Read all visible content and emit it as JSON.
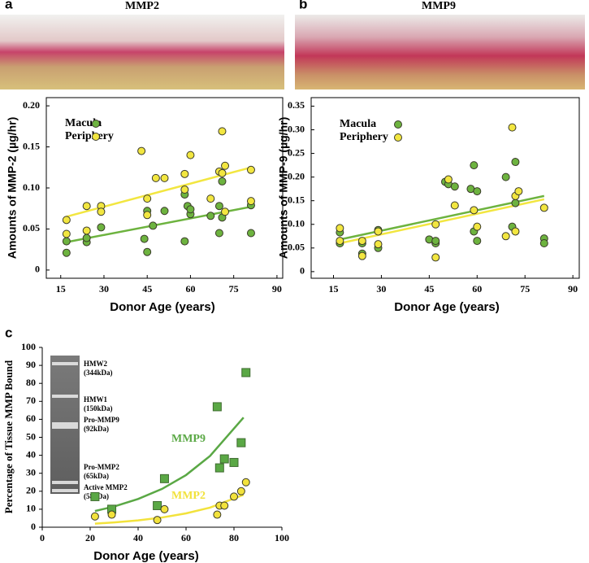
{
  "chart_data": [
    {
      "type": "scatter",
      "panel": "a",
      "title": "MMP2",
      "frame": "box",
      "legend": "top-left",
      "x_label": "Donor Age (years)",
      "y_label": "Amounts of MMP-2  (µg/hr)",
      "xlim": [
        10,
        92
      ],
      "xticks": [
        15,
        30,
        45,
        60,
        75,
        90
      ],
      "ylim": [
        -0.01,
        0.21
      ],
      "yticks": [
        0,
        0.05,
        {
          "value": 0.1,
          "label": "0.10"
        },
        0.15,
        {
          "value": 0.2,
          "label": "0.20"
        }
      ],
      "series": [
        {
          "name": "Macula",
          "color": "#6db33f",
          "marker": "circle",
          "x": [
            17,
            17,
            24,
            24,
            29,
            44,
            45,
            45,
            47,
            51,
            58,
            58,
            59,
            60,
            60,
            67,
            70,
            70,
            71,
            71,
            81,
            81
          ],
          "values": [
            0.021,
            0.035,
            0.034,
            0.039,
            0.052,
            0.038,
            0.072,
            0.022,
            0.054,
            0.072,
            0.035,
            0.092,
            0.078,
            0.068,
            0.074,
            0.066,
            0.045,
            0.078,
            0.064,
            0.108,
            0.045,
            0.079
          ],
          "fit_x": [
            17,
            81
          ],
          "fit_values": [
            0.034,
            0.077
          ]
        },
        {
          "name": "Periphery",
          "color": "#f2e640",
          "marker": "circle",
          "x": [
            17,
            17,
            24,
            24,
            29,
            29,
            43,
            45,
            45,
            48,
            51,
            58,
            58,
            60,
            67,
            70,
            71,
            72,
            71,
            72,
            81,
            81
          ],
          "values": [
            0.061,
            0.044,
            0.078,
            0.048,
            0.078,
            0.071,
            0.145,
            0.087,
            0.067,
            0.112,
            0.112,
            0.098,
            0.117,
            0.14,
            0.087,
            0.12,
            0.118,
            0.127,
            0.169,
            0.071,
            0.122,
            0.084
          ],
          "fit_x": [
            17,
            81
          ],
          "fit_values": [
            0.065,
            0.125
          ]
        }
      ]
    },
    {
      "type": "scatter",
      "panel": "b",
      "title": "MMP9",
      "frame": "box",
      "legend": "top-left",
      "x_label": "Donor Age (years)",
      "y_label": "Amounts of MMP-9  (µg/hr)",
      "xlim": [
        8,
        92
      ],
      "xticks": [
        15,
        30,
        45,
        60,
        75,
        90
      ],
      "ylim": [
        -0.014,
        0.368
      ],
      "yticks": [
        0,
        0.05,
        {
          "value": 0.1,
          "label": "0.10"
        },
        0.15,
        {
          "value": 0.2,
          "label": "0.20"
        },
        0.25,
        {
          "value": 0.3,
          "label": "0.30"
        },
        0.35
      ],
      "series": [
        {
          "name": "Macula",
          "color": "#6db33f",
          "marker": "circle",
          "x": [
            17,
            17,
            24,
            24,
            29,
            29,
            45,
            47,
            47,
            50,
            51,
            53,
            58,
            59,
            59,
            60,
            60,
            69,
            72,
            72,
            71,
            81,
            81
          ],
          "values": [
            0.083,
            0.06,
            0.06,
            0.038,
            0.088,
            0.05,
            0.068,
            0.06,
            0.065,
            0.19,
            0.185,
            0.18,
            0.175,
            0.225,
            0.085,
            0.17,
            0.065,
            0.2,
            0.232,
            0.145,
            0.095,
            0.07,
            0.06
          ],
          "fit_x": [
            17,
            81
          ],
          "fit_values": [
            0.068,
            0.16
          ]
        },
        {
          "name": "Periphery",
          "color": "#f2e640",
          "marker": "circle",
          "x": [
            17,
            17,
            24,
            24,
            29,
            29,
            47,
            47,
            51,
            53,
            59,
            60,
            69,
            71,
            72,
            72,
            73,
            81
          ],
          "values": [
            0.092,
            0.065,
            0.065,
            0.033,
            0.085,
            0.058,
            0.1,
            0.03,
            0.195,
            0.14,
            0.13,
            0.095,
            0.075,
            0.305,
            0.16,
            0.085,
            0.17,
            0.135
          ],
          "fit_x": [
            17,
            81
          ],
          "fit_values": [
            0.06,
            0.153
          ]
        }
      ]
    },
    {
      "type": "scatter",
      "panel": "c",
      "frame": "axes",
      "legend": "inline",
      "x_label": "Donor Age (years)",
      "y_label": "Percentage of Tissue MMP Bound",
      "xlim": [
        0,
        100
      ],
      "xticks": [
        0,
        20,
        40,
        60,
        80,
        100
      ],
      "ylim": [
        0,
        100
      ],
      "yticks": [
        0,
        10,
        20,
        30,
        40,
        50,
        60,
        70,
        80,
        90,
        100
      ],
      "inset_labels": [
        "HMW2 (344kDa)",
        "HMW1 (150kDa)",
        "Pro-MMP9 (92kDa)",
        "Pro-MMP2 (65kDa)",
        "Active MMP2 (58kDa)"
      ],
      "series": [
        {
          "name": "MMP9",
          "color": "#5aa845",
          "marker": "square",
          "x": [
            22,
            29,
            48,
            51,
            73,
            74,
            76,
            80,
            83,
            85
          ],
          "values": [
            17,
            10,
            12,
            27,
            67,
            33,
            38,
            36,
            47,
            86
          ],
          "fit_x": [
            22,
            30,
            40,
            50,
            60,
            70,
            84
          ],
          "fit_values": [
            9,
            11.5,
            15.7,
            21.3,
            29,
            39.6,
            61
          ]
        },
        {
          "name": "MMP2",
          "color": "#f2e23c",
          "marker": "circle",
          "x": [
            22,
            29,
            48,
            51,
            73,
            74,
            76,
            80,
            83,
            85
          ],
          "values": [
            6,
            7,
            4,
            10,
            7,
            12,
            12,
            17,
            20,
            25
          ],
          "fit_x": [
            22,
            30,
            40,
            50,
            60,
            70,
            84
          ],
          "fit_values": [
            2,
            2.66,
            3.77,
            5.4,
            7.7,
            10.9,
            18
          ]
        }
      ]
    }
  ]
}
